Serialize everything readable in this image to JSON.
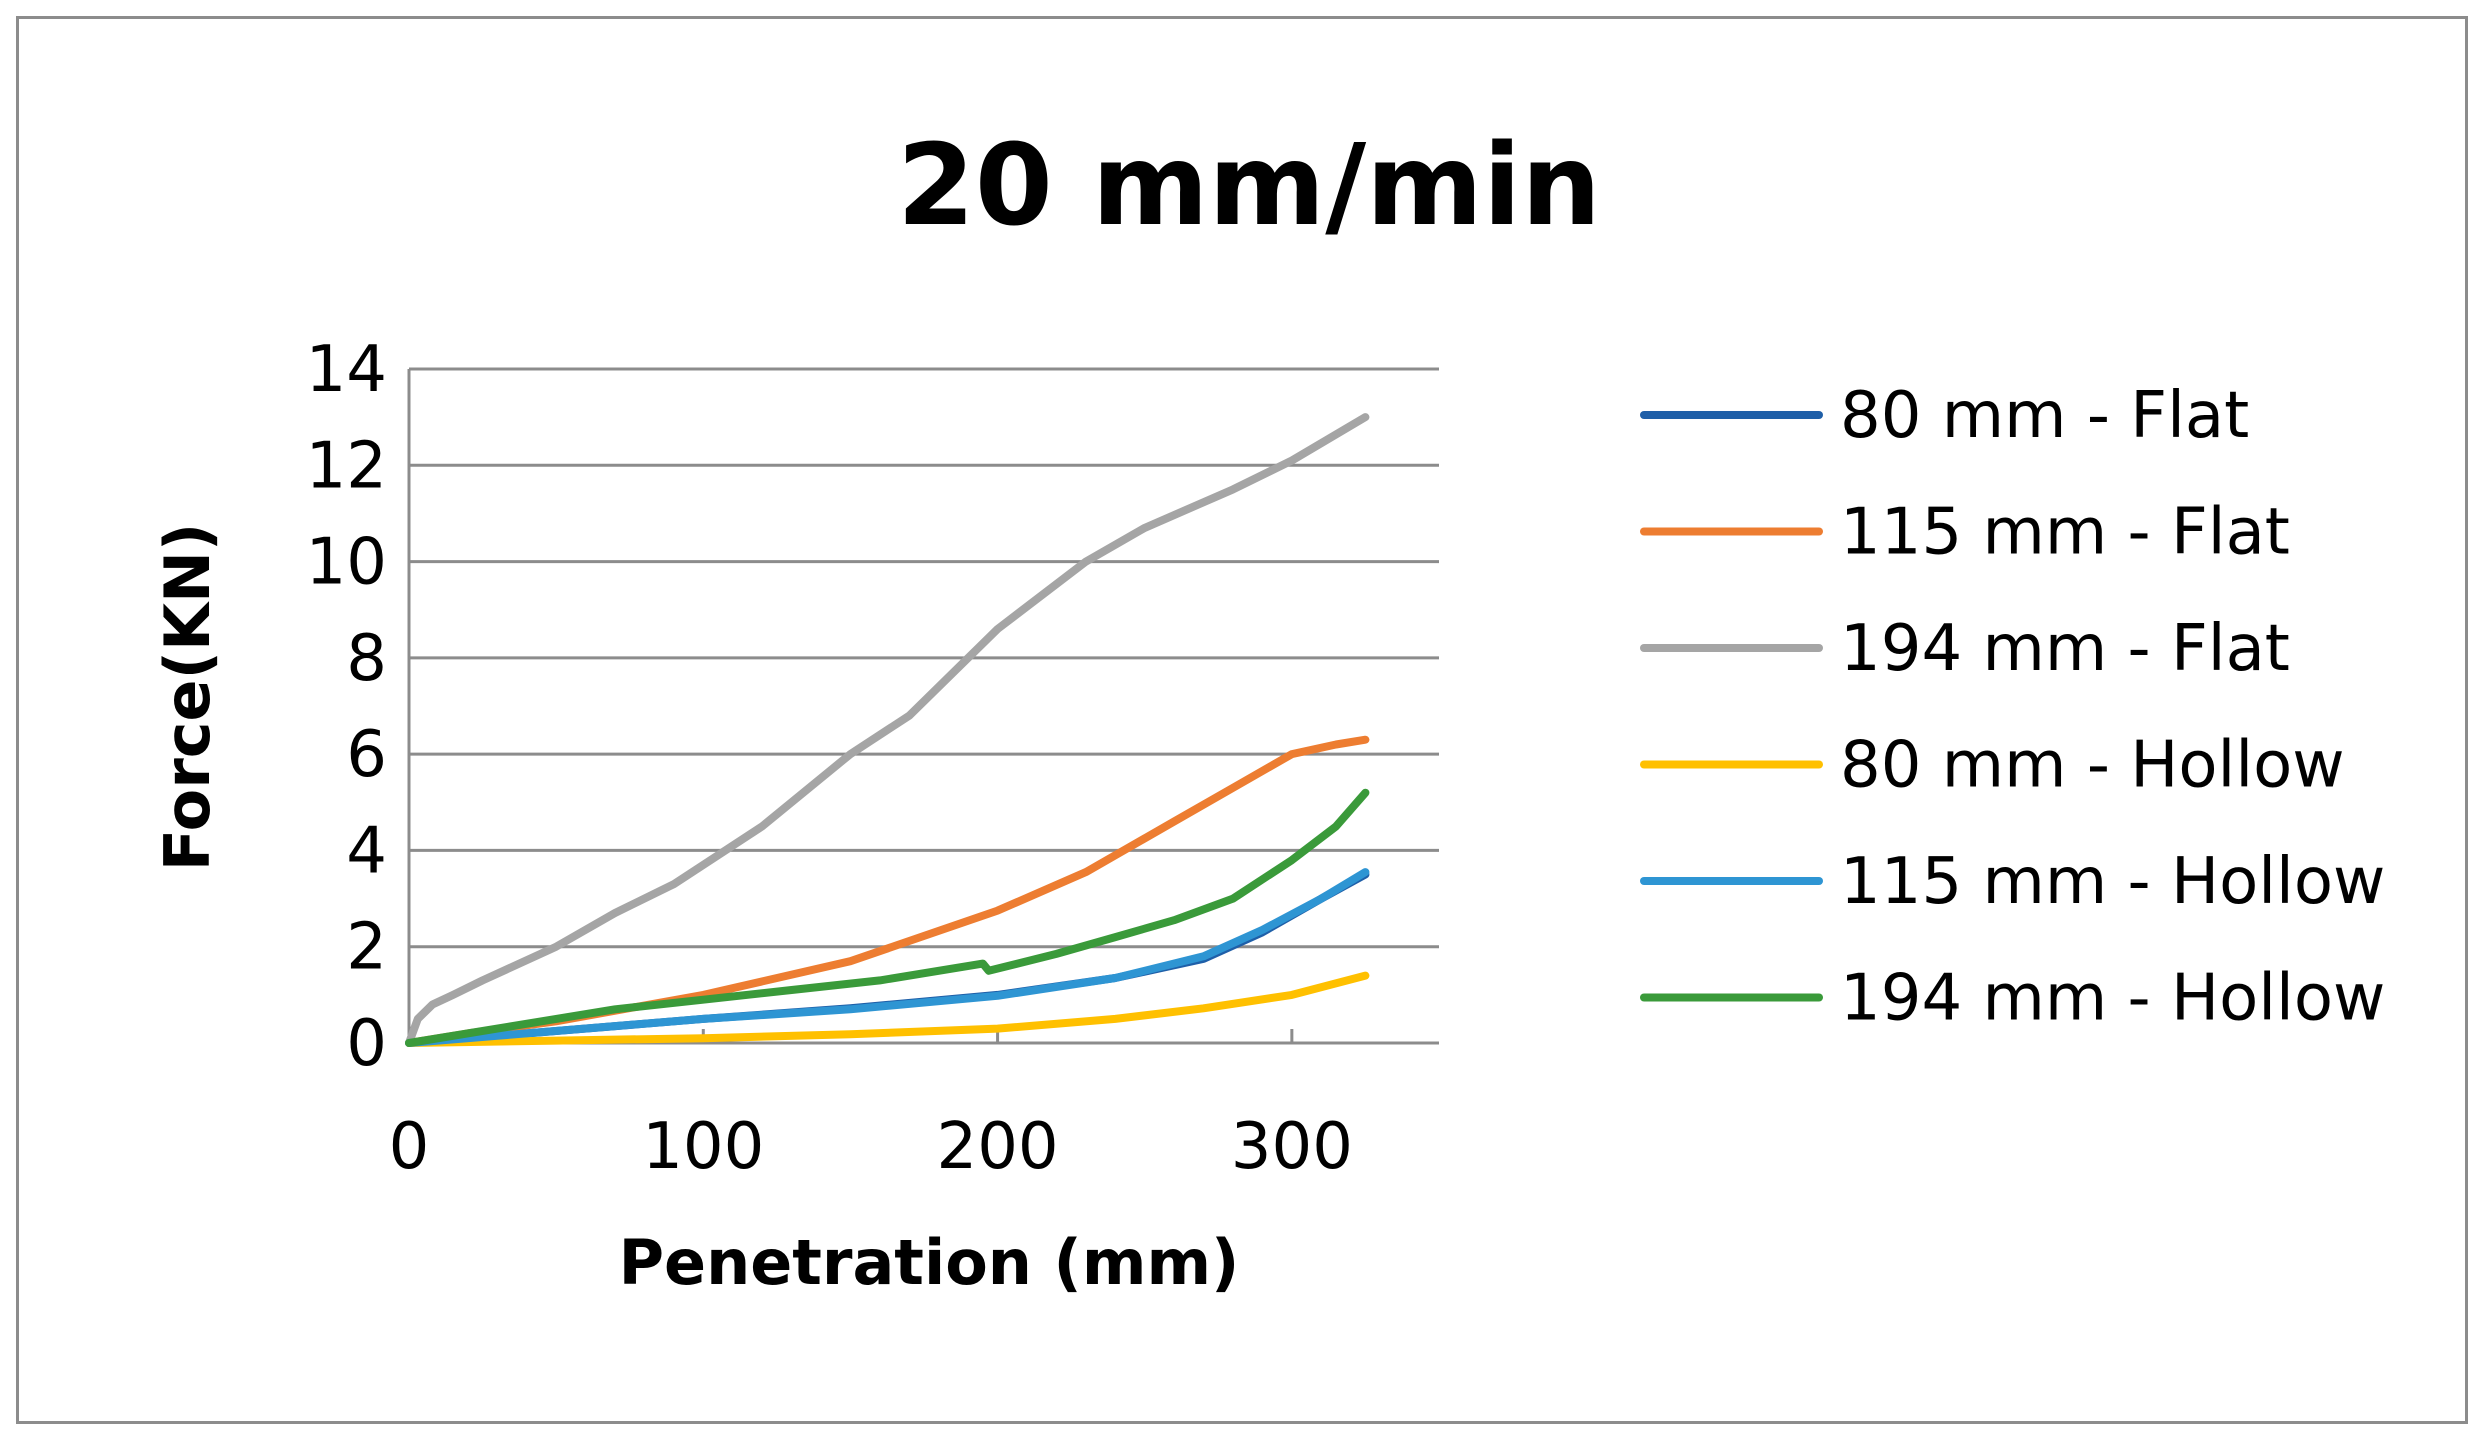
{
  "chart_data": {
    "type": "line",
    "title": "20 mm/min",
    "xlabel": "Penetration (mm)",
    "ylabel": "Force(KN)",
    "xlim": [
      0,
      350
    ],
    "ylim": [
      0,
      14
    ],
    "xticks": [
      0,
      100,
      200,
      300
    ],
    "yticks": [
      0,
      2,
      4,
      6,
      8,
      10,
      12,
      14
    ],
    "grid": "horizontal",
    "legend_position": "right",
    "series": [
      {
        "name": "80 mm - Flat",
        "color": "#1f5fa8",
        "points": [
          [
            0,
            0
          ],
          [
            20,
            0.1
          ],
          [
            50,
            0.25
          ],
          [
            100,
            0.5
          ],
          [
            150,
            0.72
          ],
          [
            200,
            1.0
          ],
          [
            240,
            1.35
          ],
          [
            270,
            1.75
          ],
          [
            290,
            2.3
          ],
          [
            310,
            3.0
          ],
          [
            325,
            3.5
          ]
        ]
      },
      {
        "name": "115 mm - Flat",
        "color": "#ed7d31",
        "points": [
          [
            0,
            0
          ],
          [
            20,
            0.2
          ],
          [
            50,
            0.45
          ],
          [
            100,
            1.0
          ],
          [
            150,
            1.7
          ],
          [
            200,
            2.75
          ],
          [
            230,
            3.55
          ],
          [
            260,
            4.6
          ],
          [
            280,
            5.3
          ],
          [
            300,
            6.0
          ],
          [
            315,
            6.2
          ],
          [
            325,
            6.3
          ]
        ]
      },
      {
        "name": "194 mm - Flat",
        "color": "#a5a5a5",
        "points": [
          [
            0,
            0
          ],
          [
            3,
            0.5
          ],
          [
            8,
            0.8
          ],
          [
            15,
            1.0
          ],
          [
            25,
            1.3
          ],
          [
            50,
            2.0
          ],
          [
            70,
            2.7
          ],
          [
            90,
            3.3
          ],
          [
            120,
            4.5
          ],
          [
            150,
            6.0
          ],
          [
            170,
            6.8
          ],
          [
            200,
            8.6
          ],
          [
            230,
            10.0
          ],
          [
            250,
            10.7
          ],
          [
            280,
            11.5
          ],
          [
            300,
            12.1
          ],
          [
            325,
            13.0
          ]
        ]
      },
      {
        "name": "80 mm - Hollow",
        "color": "#ffc000",
        "points": [
          [
            0,
            0
          ],
          [
            50,
            0.05
          ],
          [
            100,
            0.1
          ],
          [
            150,
            0.18
          ],
          [
            200,
            0.3
          ],
          [
            240,
            0.5
          ],
          [
            270,
            0.72
          ],
          [
            300,
            1.0
          ],
          [
            325,
            1.4
          ]
        ]
      },
      {
        "name": "115 mm - Hollow",
        "color": "#2e95d3",
        "points": [
          [
            0,
            0
          ],
          [
            30,
            0.15
          ],
          [
            70,
            0.35
          ],
          [
            100,
            0.5
          ],
          [
            150,
            0.7
          ],
          [
            200,
            0.98
          ],
          [
            240,
            1.35
          ],
          [
            270,
            1.8
          ],
          [
            290,
            2.35
          ],
          [
            310,
            3.0
          ],
          [
            325,
            3.55
          ]
        ]
      },
      {
        "name": "194 mm - Hollow",
        "color": "#3a9a3a",
        "points": [
          [
            0,
            0
          ],
          [
            30,
            0.3
          ],
          [
            70,
            0.7
          ],
          [
            100,
            0.9
          ],
          [
            130,
            1.1
          ],
          [
            160,
            1.3
          ],
          [
            195,
            1.65
          ],
          [
            197,
            1.5
          ],
          [
            220,
            1.85
          ],
          [
            240,
            2.2
          ],
          [
            260,
            2.55
          ],
          [
            280,
            3.0
          ],
          [
            300,
            3.8
          ],
          [
            315,
            4.5
          ],
          [
            325,
            5.2
          ]
        ]
      }
    ]
  }
}
